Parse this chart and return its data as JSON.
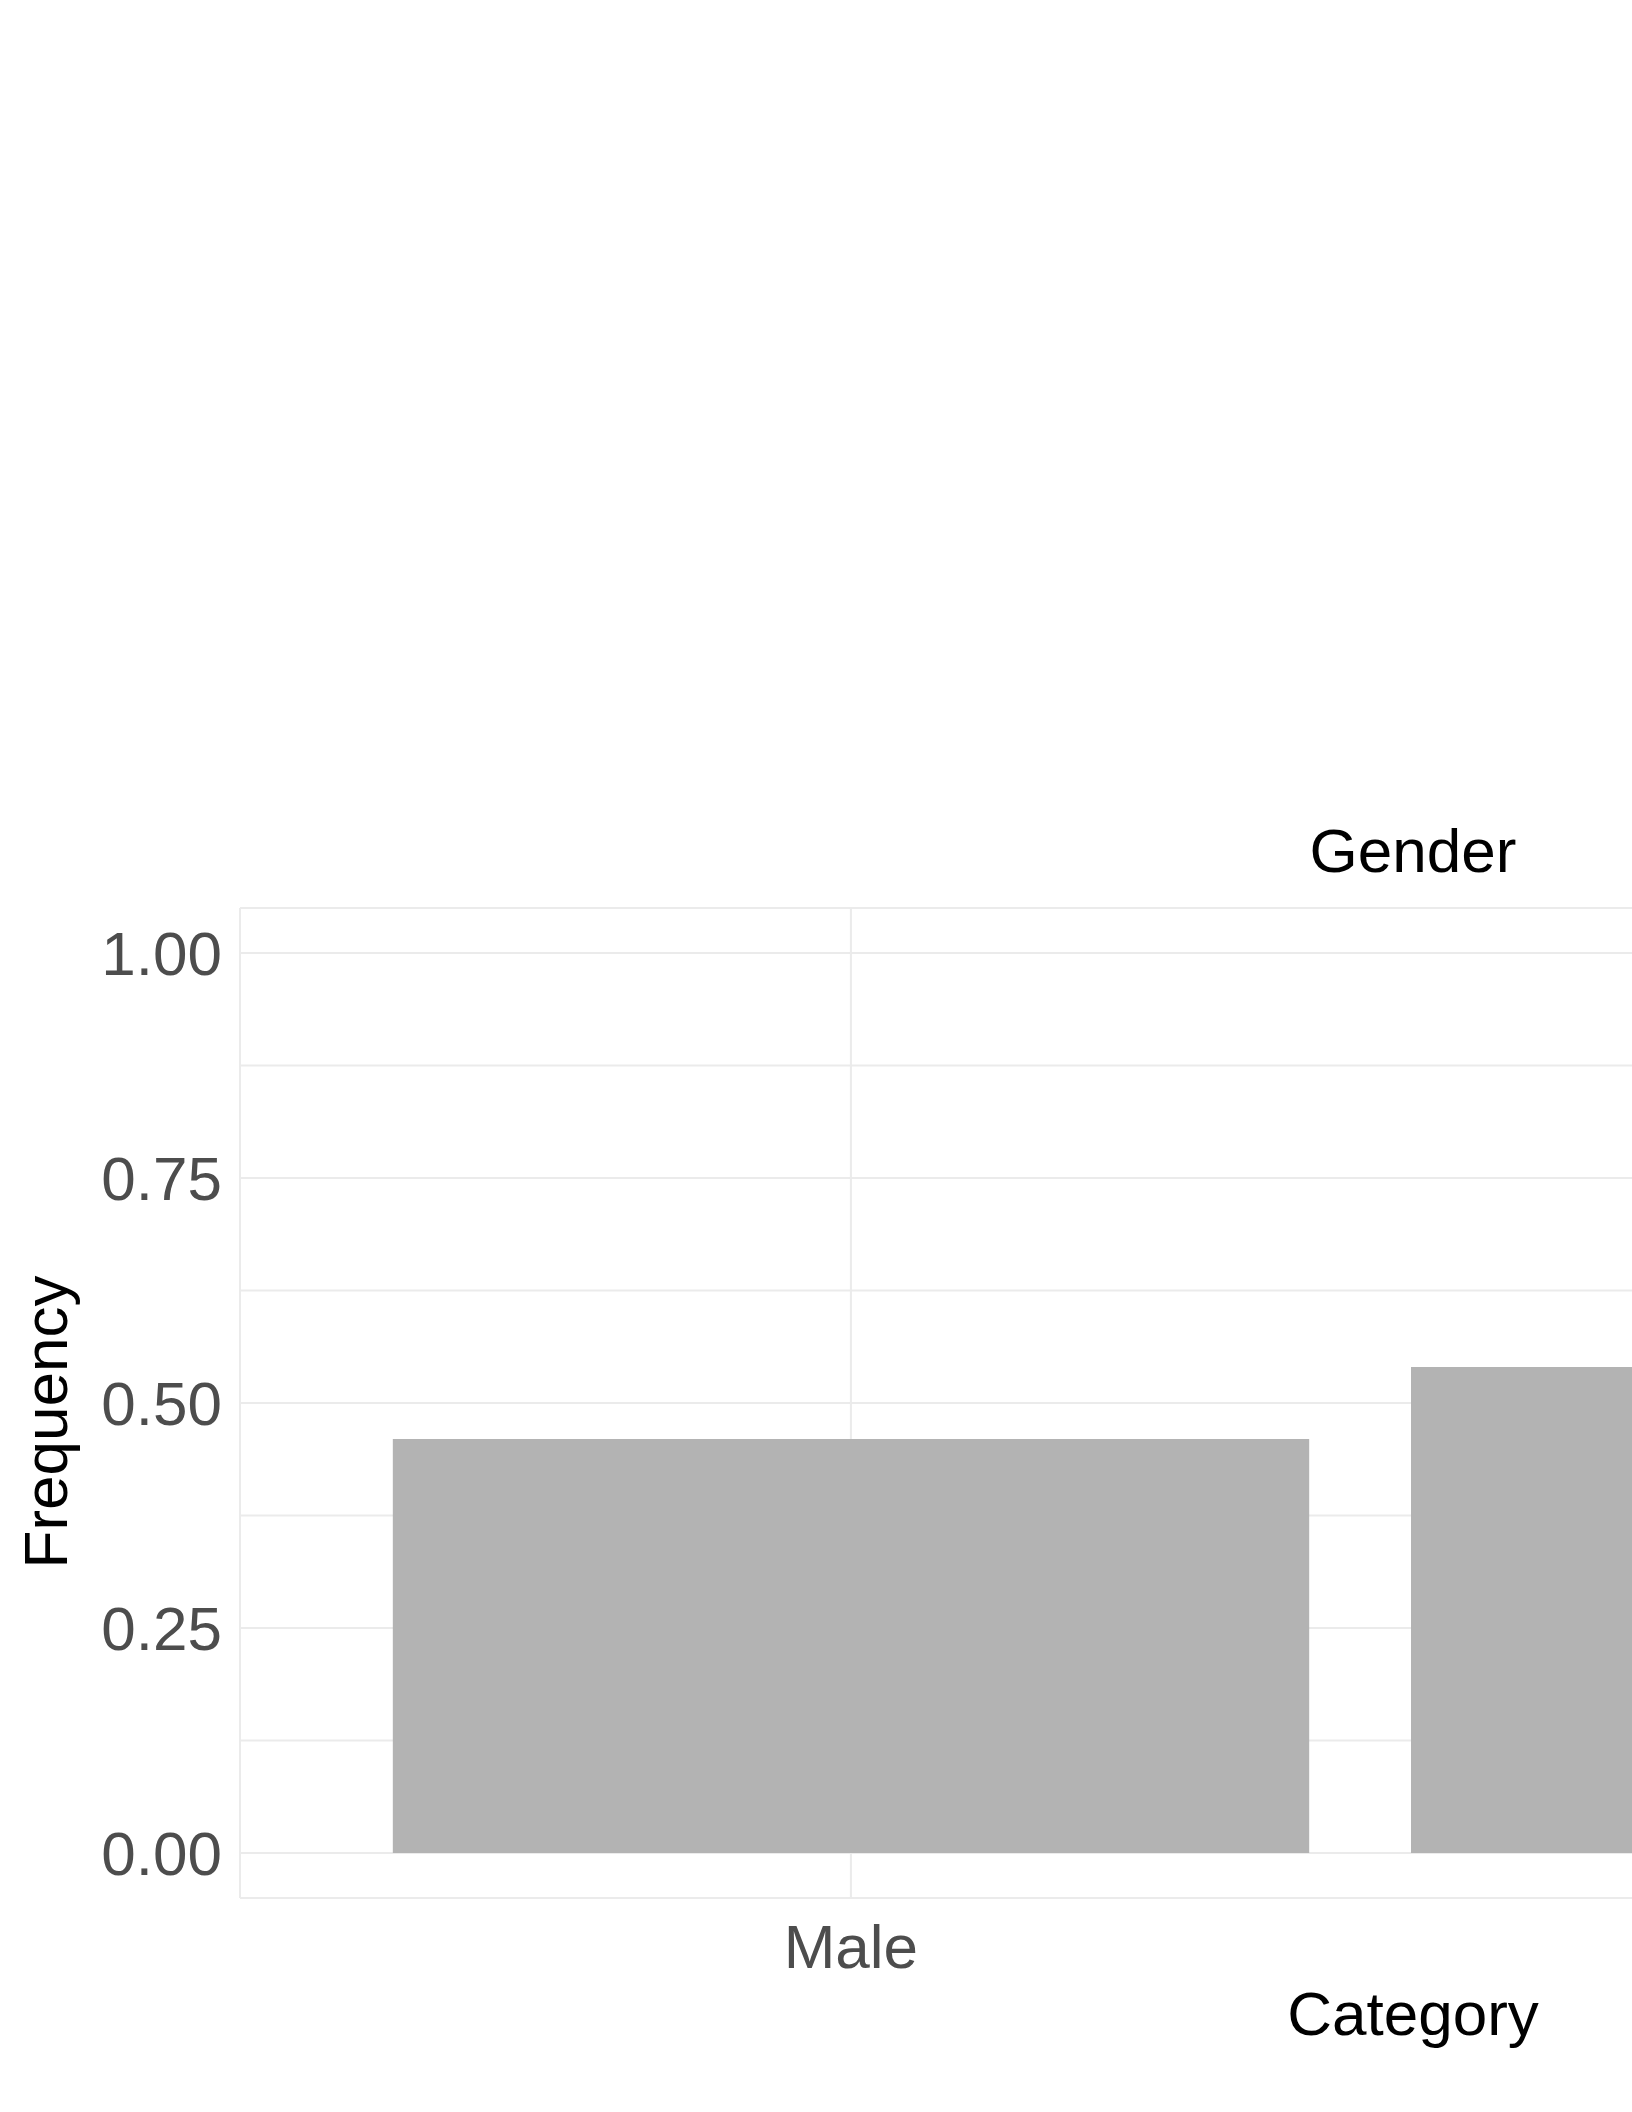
{
  "chart_data": {
    "type": "bar",
    "title": "Gender",
    "xlabel": "Category",
    "ylabel": "Frequency",
    "categories": [
      "Male",
      null
    ],
    "values": [
      0.46,
      0.54
    ],
    "color": "#b3b3b3",
    "ylim": [
      -0.05,
      1.05
    ],
    "yticks": [
      {
        "value": 0,
        "label": "0.00"
      },
      {
        "value": 0.125,
        "label": null
      },
      {
        "value": 0.25,
        "label": "0.25"
      },
      {
        "value": 0.375,
        "label": null
      },
      {
        "value": 0.5,
        "label": "0.50"
      },
      {
        "value": 0.625,
        "label": null
      },
      {
        "value": 0.75,
        "label": "0.75"
      },
      {
        "value": 0.875,
        "label": null
      },
      {
        "value": 1,
        "label": "1.00"
      }
    ],
    "grid": true
  }
}
